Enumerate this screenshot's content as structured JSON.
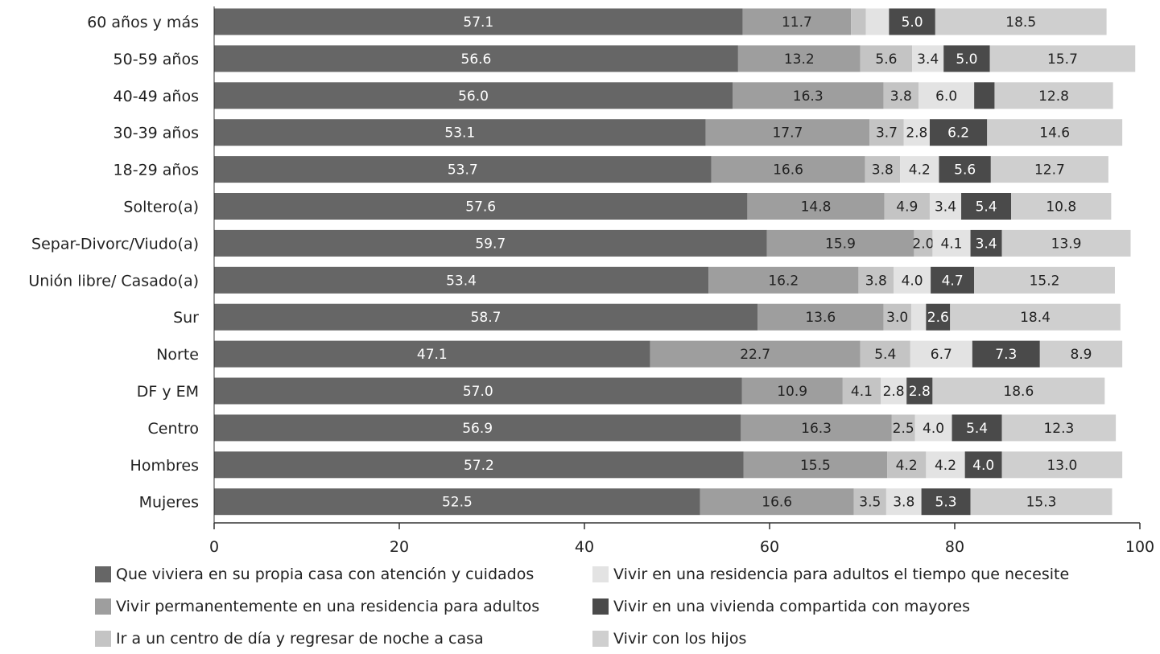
{
  "chart_data": {
    "type": "bar",
    "orientation": "horizontal",
    "stacked": true,
    "categories": [
      "60 años y más",
      "50-59 años",
      "40-49 años",
      "30-39 años",
      "18-29 años",
      "Soltero(a)",
      "Separ-Divorc/Viudo(a)",
      "Unión libre/ Casado(a)",
      "Sur",
      "Norte",
      "DF y EM",
      "Centro",
      "Hombres",
      "Mujeres"
    ],
    "series": [
      {
        "name": "Que viviera en su propia casa con atención y cuidados",
        "color": "#666666",
        "text_color": "#ffffff",
        "values": [
          57.1,
          56.6,
          56.0,
          53.1,
          53.7,
          57.6,
          59.7,
          53.4,
          58.7,
          47.1,
          57.0,
          56.9,
          57.2,
          52.5
        ],
        "labels": [
          "57.1",
          "56.6",
          "56.0",
          "53.1",
          "53.7",
          "57.6",
          "59.7",
          "53.4",
          "58.7",
          "47.1",
          "57.0",
          "56.9",
          "57.2",
          "52.5"
        ]
      },
      {
        "name": "Vivir permanentemente en una residencia para adultos",
        "color": "#9e9e9e",
        "text_color": "#222222",
        "values": [
          11.7,
          13.2,
          16.3,
          17.7,
          16.6,
          14.8,
          15.9,
          16.2,
          13.6,
          22.7,
          10.9,
          16.3,
          15.5,
          16.6
        ],
        "labels": [
          "11.7",
          "13.2",
          "16.3",
          "17.7",
          "16.6",
          "14.8",
          "15.9",
          "16.2",
          "13.6",
          "22.7",
          "10.9",
          "16.3",
          "15.5",
          "16.6"
        ]
      },
      {
        "name": "Ir a un centro de día y regresar de noche a casa",
        "color": "#c4c4c4",
        "text_color": "#222222",
        "values": [
          1.6,
          5.6,
          3.8,
          3.7,
          3.8,
          4.9,
          2.0,
          3.8,
          3.0,
          5.4,
          4.1,
          2.5,
          4.2,
          3.5
        ],
        "labels": [
          "",
          "5.6",
          "3.8",
          "3.7",
          "3.8",
          "4.9",
          "2.0",
          "3.8",
          "3.0",
          "5.4",
          "4.1",
          "2.5",
          "4.2",
          "3.5"
        ]
      },
      {
        "name": "Vivir en una residencia para adultos el tiempo que necesite",
        "color": "#e3e3e3",
        "text_color": "#222222",
        "values": [
          2.5,
          3.4,
          6.0,
          2.8,
          4.2,
          3.4,
          4.1,
          4.0,
          1.6,
          6.7,
          2.8,
          4.0,
          4.2,
          3.8
        ],
        "labels": [
          "",
          "3.4",
          "6.0",
          "2.8",
          "4.2",
          "3.4",
          "4.1",
          "4.0",
          "",
          "6.7",
          "2.8",
          "4.0",
          "4.2",
          "3.8"
        ]
      },
      {
        "name": "Vivir en una vivienda compartida con mayores",
        "color": "#4a4a4a",
        "text_color": "#ffffff",
        "values": [
          5.0,
          5.0,
          2.2,
          6.2,
          5.6,
          5.4,
          3.4,
          4.7,
          2.6,
          7.3,
          2.8,
          5.4,
          4.0,
          5.3
        ],
        "labels": [
          "5.0",
          "5.0",
          "",
          "6.2",
          "5.6",
          "5.4",
          "3.4",
          "4.7",
          "2.6",
          "7.3",
          "2.8",
          "5.4",
          "4.0",
          "5.3"
        ]
      },
      {
        "name": "Vivir con los hijos",
        "color": "#cfcfcf",
        "text_color": "#222222",
        "values": [
          18.5,
          15.7,
          12.8,
          14.6,
          12.7,
          10.8,
          13.9,
          15.2,
          18.4,
          8.9,
          18.6,
          12.3,
          13.0,
          15.3
        ],
        "labels": [
          "18.5",
          "15.7",
          "12.8",
          "14.6",
          "12.7",
          "10.8",
          "13.9",
          "15.2",
          "18.4",
          "8.9",
          "18.6",
          "12.3",
          "13.0",
          "15.3"
        ]
      }
    ],
    "xlim": [
      0,
      100
    ],
    "xticks": [
      "0",
      "20",
      "40",
      "60",
      "80",
      "100"
    ],
    "grid": false,
    "legend_position": "bottom"
  }
}
